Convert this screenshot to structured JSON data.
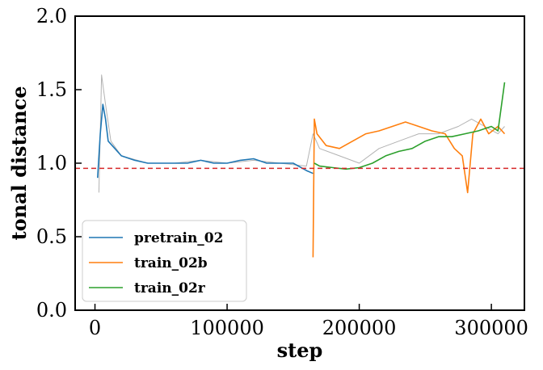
{
  "chart_data": {
    "type": "line",
    "xlabel": "step",
    "ylabel": "tonal distance",
    "xlim": [
      -15000,
      325000
    ],
    "ylim": [
      0,
      2.0
    ],
    "x_ticks": [
      0,
      100000,
      200000,
      300000
    ],
    "y_ticks": [
      0.0,
      0.5,
      1.0,
      1.5,
      2.0
    ],
    "x_tick_labels": [
      "0",
      "100000",
      "200000",
      "300000"
    ],
    "y_tick_labels": [
      "0.0",
      "0.5",
      "1.0",
      "1.5",
      "2.0"
    ],
    "reference_line": {
      "y": 0.965,
      "color": "#d62728",
      "style": "dashed"
    },
    "legend_position": "lower-left",
    "raw_trace": {
      "color": "#aaaaaa",
      "x": [
        3000,
        5000,
        8000,
        12000,
        20000,
        40000,
        60000,
        80000,
        100000,
        120000,
        140000,
        160000,
        165000,
        170000,
        185000,
        200000,
        215000,
        230000,
        245000,
        260000,
        275000,
        285000,
        295000,
        305000,
        310000
      ],
      "y": [
        0.8,
        1.6,
        1.4,
        1.15,
        1.05,
        1.0,
        1.0,
        1.02,
        1.0,
        1.02,
        1.0,
        0.98,
        1.2,
        1.1,
        1.05,
        1.0,
        1.1,
        1.15,
        1.2,
        1.2,
        1.25,
        1.3,
        1.25,
        1.2,
        1.25
      ]
    },
    "series": [
      {
        "name": "pretrain_02",
        "color": "#1f77b4",
        "x": [
          2000,
          4000,
          6000,
          8000,
          10000,
          15000,
          20000,
          30000,
          40000,
          50000,
          60000,
          70000,
          80000,
          90000,
          100000,
          110000,
          120000,
          130000,
          140000,
          150000,
          160000,
          165000
        ],
        "y": [
          0.9,
          1.2,
          1.4,
          1.3,
          1.15,
          1.1,
          1.05,
          1.02,
          1.0,
          1.0,
          1.0,
          1.0,
          1.02,
          1.0,
          1.0,
          1.02,
          1.03,
          1.0,
          1.0,
          1.0,
          0.95,
          0.93
        ]
      },
      {
        "name": "train_02b",
        "color": "#ff7f0e",
        "x": [
          165000,
          166000,
          168000,
          175000,
          185000,
          195000,
          205000,
          215000,
          225000,
          235000,
          245000,
          255000,
          265000,
          272000,
          278000,
          282000,
          286000,
          292000,
          298000,
          305000,
          310000
        ],
        "y": [
          0.36,
          1.3,
          1.2,
          1.12,
          1.1,
          1.15,
          1.2,
          1.22,
          1.25,
          1.28,
          1.25,
          1.22,
          1.2,
          1.1,
          1.05,
          0.8,
          1.2,
          1.3,
          1.2,
          1.25,
          1.2
        ]
      },
      {
        "name": "train_02r",
        "color": "#2ca02c",
        "x": [
          166000,
          170000,
          180000,
          190000,
          200000,
          210000,
          220000,
          230000,
          240000,
          250000,
          260000,
          270000,
          280000,
          290000,
          300000,
          305000,
          310000
        ],
        "y": [
          1.0,
          0.98,
          0.97,
          0.96,
          0.97,
          1.0,
          1.05,
          1.08,
          1.1,
          1.15,
          1.18,
          1.18,
          1.2,
          1.22,
          1.25,
          1.22,
          1.55
        ]
      }
    ]
  }
}
